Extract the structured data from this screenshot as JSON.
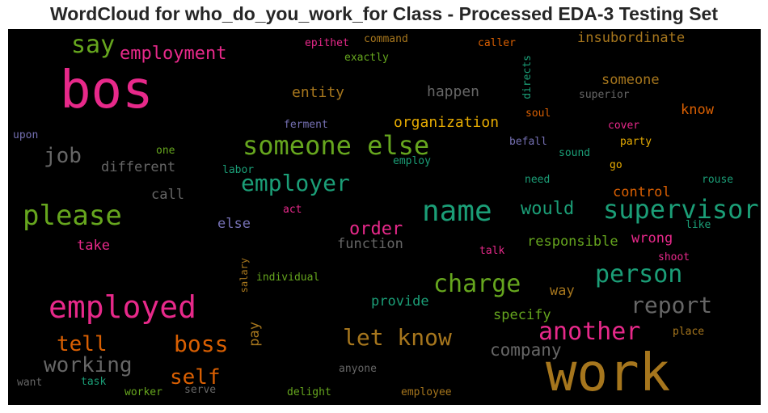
{
  "title": "WordCloud for who_do_you_work_for Class - Processed EDA-3 Testing Set",
  "palette": {
    "magenta": "#e7298a",
    "green": "#66a61e",
    "teal": "#1b9e77",
    "orange": "#d95f02",
    "gold": "#a6761d",
    "yellow": "#e6ab02",
    "gray": "#666666",
    "purple": "#7570b3",
    "background": "#000000"
  },
  "words": [
    {
      "text": "bos",
      "color": "#e7298a"
    },
    {
      "text": "work",
      "color": "#a6761d"
    },
    {
      "text": "someone else",
      "color": "#66a61e"
    },
    {
      "text": "name",
      "color": "#1b9e77"
    },
    {
      "text": "employed",
      "color": "#e7298a"
    },
    {
      "text": "please",
      "color": "#66a61e"
    },
    {
      "text": "supervisor",
      "color": "#1b9e77"
    },
    {
      "text": "employer",
      "color": "#1b9e77"
    },
    {
      "text": "charge",
      "color": "#66a61e"
    },
    {
      "text": "person",
      "color": "#1b9e77"
    },
    {
      "text": "another",
      "color": "#e7298a"
    },
    {
      "text": "report",
      "color": "#666666"
    },
    {
      "text": "let know",
      "color": "#a6761d"
    },
    {
      "text": "boss",
      "color": "#d95f02"
    },
    {
      "text": "tell",
      "color": "#d95f02"
    },
    {
      "text": "self",
      "color": "#d95f02"
    },
    {
      "text": "working",
      "color": "#666666"
    },
    {
      "text": "job",
      "color": "#666666"
    },
    {
      "text": "say",
      "color": "#66a61e"
    },
    {
      "text": "company",
      "color": "#666666"
    },
    {
      "text": "employment",
      "color": "#e7298a"
    },
    {
      "text": "would",
      "color": "#1b9e77"
    },
    {
      "text": "order",
      "color": "#e7298a"
    },
    {
      "text": "organization",
      "color": "#e6ab02"
    },
    {
      "text": "insubordinate",
      "color": "#a6761d"
    },
    {
      "text": "happen",
      "color": "#666666"
    },
    {
      "text": "entity",
      "color": "#a6761d"
    },
    {
      "text": "someone",
      "color": "#a6761d"
    },
    {
      "text": "different",
      "color": "#666666"
    },
    {
      "text": "call",
      "color": "#666666"
    },
    {
      "text": "control",
      "color": "#d95f02"
    },
    {
      "text": "know",
      "color": "#d95f02"
    },
    {
      "text": "function",
      "color": "#666666"
    },
    {
      "text": "responsible",
      "color": "#66a61e"
    },
    {
      "text": "wrong",
      "color": "#e7298a"
    },
    {
      "text": "specify",
      "color": "#66a61e"
    },
    {
      "text": "provide",
      "color": "#1b9e77"
    },
    {
      "text": "way",
      "color": "#a6761d"
    },
    {
      "text": "take",
      "color": "#e7298a"
    },
    {
      "text": "else",
      "color": "#7570b3"
    },
    {
      "text": "pay",
      "color": "#a6761d"
    },
    {
      "text": "directs",
      "color": "#1b9e77"
    },
    {
      "text": "salary",
      "color": "#a6761d"
    },
    {
      "text": "epithet",
      "color": "#e7298a"
    },
    {
      "text": "command",
      "color": "#a6761d"
    },
    {
      "text": "caller",
      "color": "#d95f02"
    },
    {
      "text": "exactly",
      "color": "#66a61e"
    },
    {
      "text": "superior",
      "color": "#666666"
    },
    {
      "text": "soul",
      "color": "#d95f02"
    },
    {
      "text": "cover",
      "color": "#e7298a"
    },
    {
      "text": "party",
      "color": "#e6ab02"
    },
    {
      "text": "ferment",
      "color": "#7570b3"
    },
    {
      "text": "upon",
      "color": "#7570b3"
    },
    {
      "text": "one",
      "color": "#66a61e"
    },
    {
      "text": "befall",
      "color": "#7570b3"
    },
    {
      "text": "sound",
      "color": "#1b9e77"
    },
    {
      "text": "go",
      "color": "#e6ab02"
    },
    {
      "text": "employ",
      "color": "#1b9e77"
    },
    {
      "text": "labor",
      "color": "#1b9e77"
    },
    {
      "text": "need",
      "color": "#1b9e77"
    },
    {
      "text": "rouse",
      "color": "#1b9e77"
    },
    {
      "text": "like",
      "color": "#1b9e77"
    },
    {
      "text": "act",
      "color": "#e7298a"
    },
    {
      "text": "talk",
      "color": "#e7298a"
    },
    {
      "text": "shoot",
      "color": "#e7298a"
    },
    {
      "text": "individual",
      "color": "#66a61e"
    },
    {
      "text": "place",
      "color": "#a6761d"
    },
    {
      "text": "anyone",
      "color": "#666666"
    },
    {
      "text": "want",
      "color": "#666666"
    },
    {
      "text": "task",
      "color": "#1b9e77"
    },
    {
      "text": "worker",
      "color": "#66a61e"
    },
    {
      "text": "serve",
      "color": "#666666"
    },
    {
      "text": "delight",
      "color": "#66a61e"
    },
    {
      "text": "employee",
      "color": "#a6761d"
    }
  ]
}
